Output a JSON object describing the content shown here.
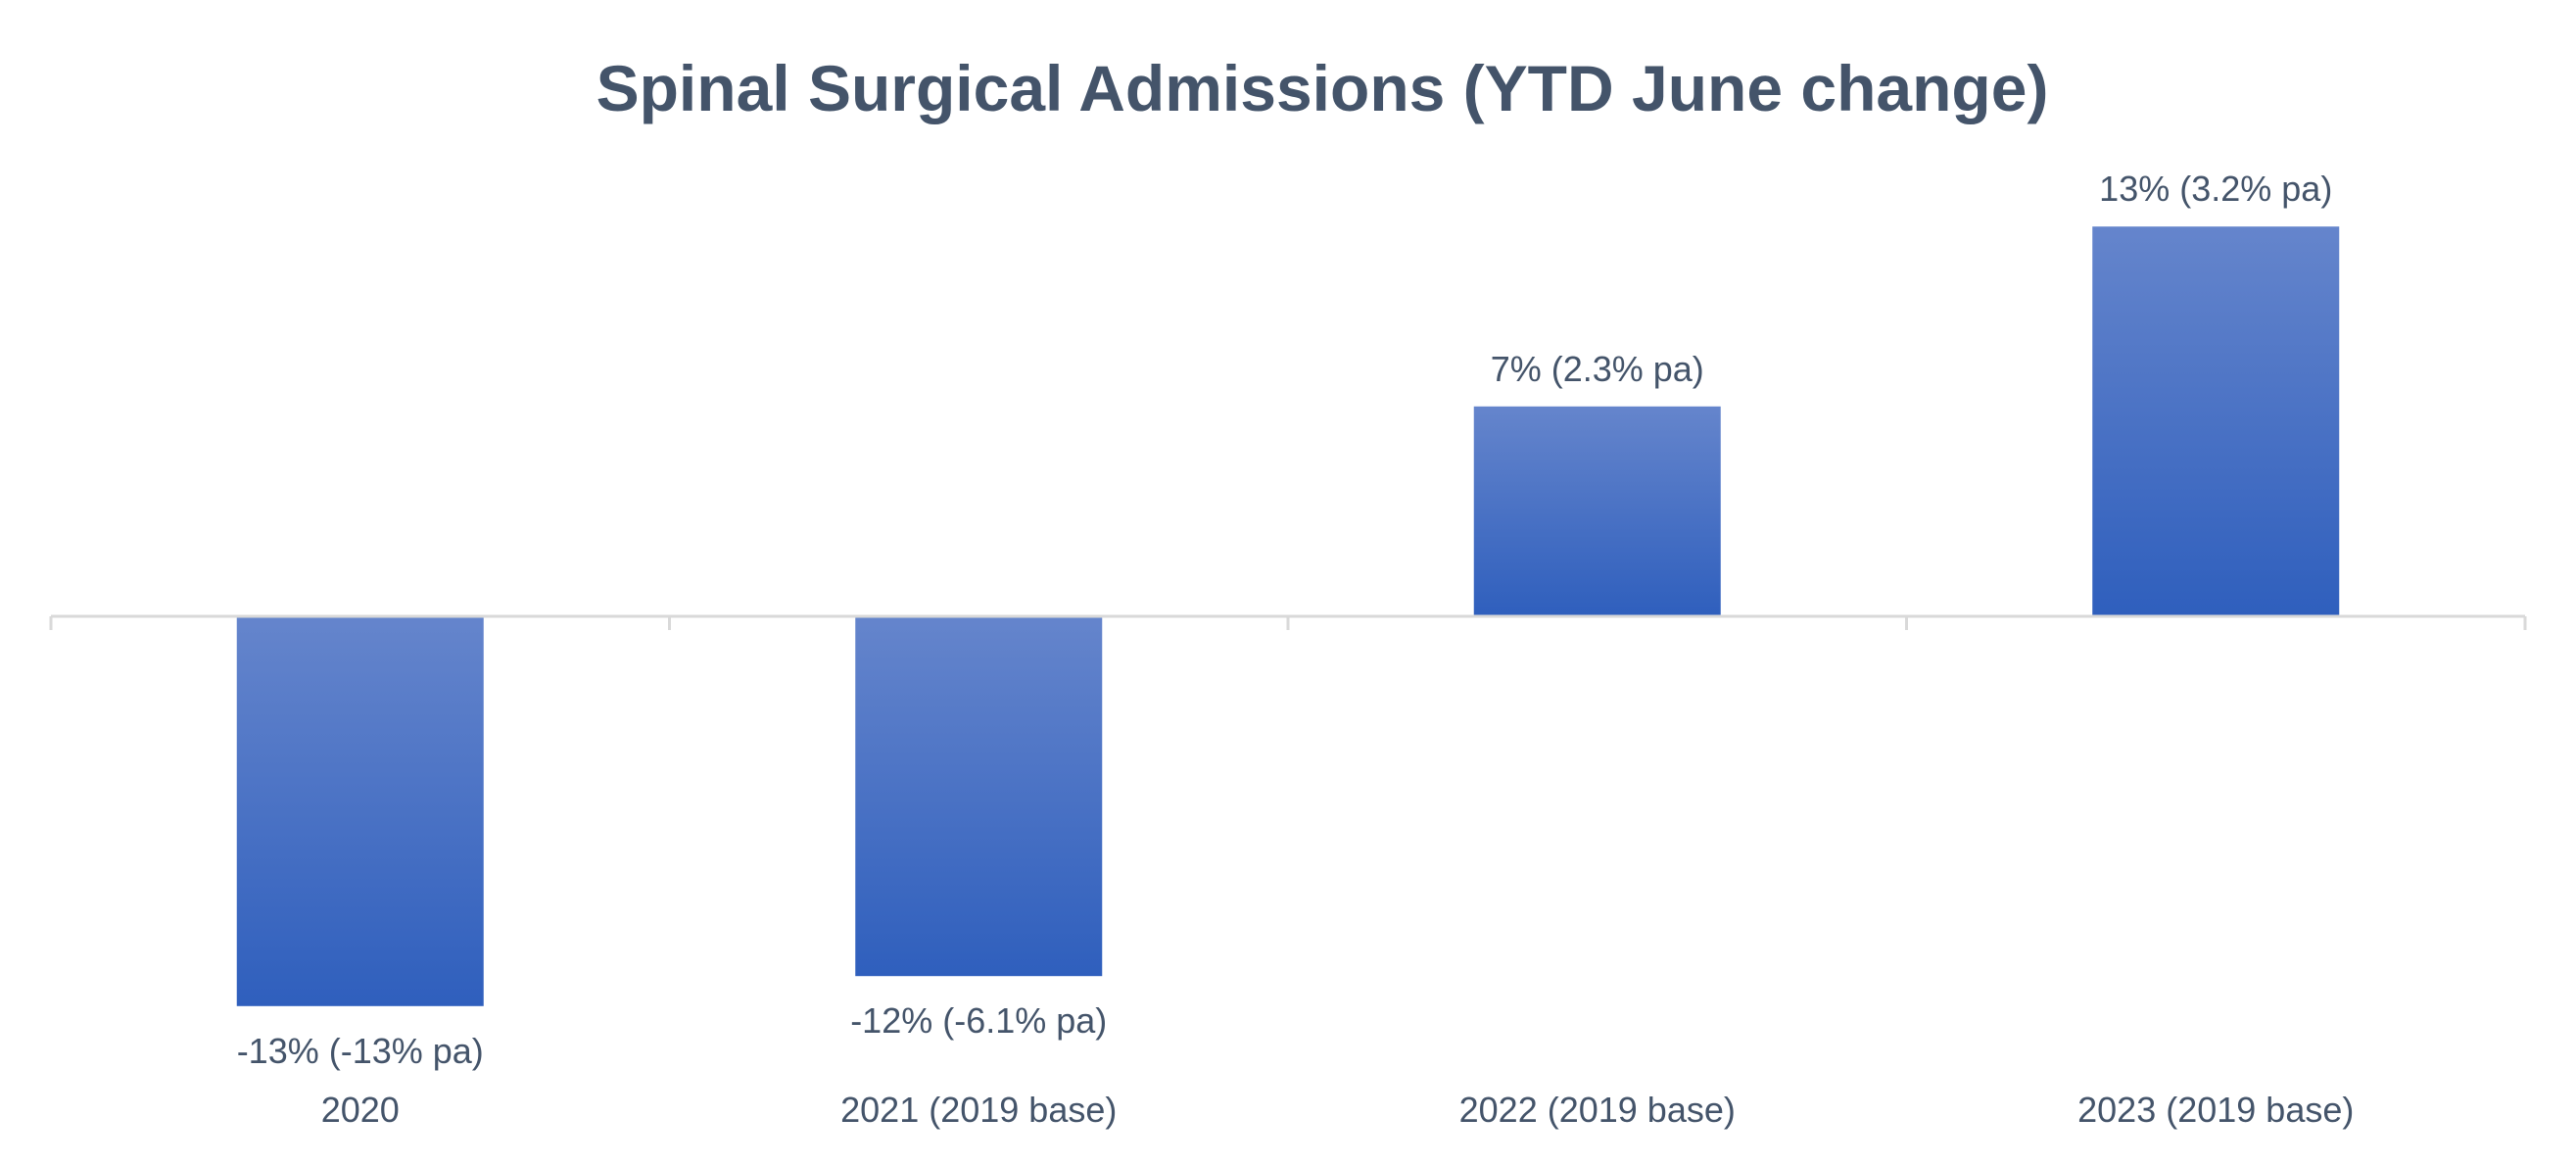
{
  "chart_data": {
    "type": "bar",
    "title": "Spinal Surgical Admissions (YTD June change)",
    "xlabel": "",
    "ylabel": "",
    "categories": [
      "2020",
      "2021 (2019 base)",
      "2022 (2019 base)",
      "2023 (2019 base)"
    ],
    "values": [
      -13,
      -12,
      7,
      13
    ],
    "data_labels": [
      "-13% (-13% pa)",
      "-12% (-6.1% pa)",
      "7% (2.3% pa)",
      "13% (3.2% pa)"
    ],
    "value_unit": "%",
    "ylim": [
      -13,
      13
    ],
    "gridlines": false,
    "legend": "none",
    "colors": {
      "bar_top": "#6585cc",
      "bar_bottom": "#2f5fbd",
      "axis": "#d9d9d9",
      "text": "#44546a"
    }
  }
}
